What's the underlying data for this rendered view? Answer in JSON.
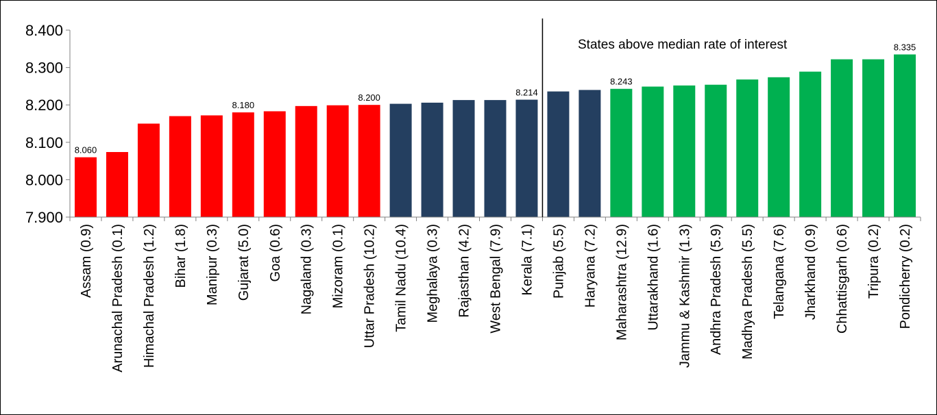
{
  "chart_data": {
    "type": "bar",
    "categories": [
      "Assam (0.9)",
      "Arunachal Pradesh (0.1)",
      "Himachal Pradesh (1.2)",
      "Bihar (1.8)",
      "Manipur (0.3)",
      "Gujarat (5.0)",
      "Goa (0.6)",
      "Nagaland (0.3)",
      "Mizoram (0.1)",
      "Uttar Pradesh (10.2)",
      "Tamil Nadu (10.4)",
      "Meghalaya (0.3)",
      "Rajasthan (4.2)",
      "West Bengal (7.9)",
      "Kerala (7.1)",
      "Punjab (5.5)",
      "Haryana (7.2)",
      "Maharashtra (12.9)",
      "Uttarakhand (1.6)",
      "Jammu & Kashmir (1.3)",
      "Andhra Pradesh (5.9)",
      "Madhya Pradesh (5.5)",
      "Telangana (7.6)",
      "Jharkhand (0.9)",
      "Chhattisgarh (0.6)",
      "Tripura (0.2)",
      "Pondicherry (0.2)"
    ],
    "values": [
      8.06,
      8.074,
      8.15,
      8.17,
      8.172,
      8.18,
      8.183,
      8.197,
      8.199,
      8.2,
      8.203,
      8.206,
      8.213,
      8.213,
      8.214,
      8.236,
      8.24,
      8.243,
      8.249,
      8.252,
      8.254,
      8.268,
      8.274,
      8.289,
      8.322,
      8.322,
      8.335
    ],
    "bar_colors": [
      "#ff0000",
      "#ff0000",
      "#ff0000",
      "#ff0000",
      "#ff0000",
      "#ff0000",
      "#ff0000",
      "#ff0000",
      "#ff0000",
      "#ff0000",
      "#243f60",
      "#243f60",
      "#243f60",
      "#243f60",
      "#243f60",
      "#243f60",
      "#243f60",
      "#00b050",
      "#00b050",
      "#00b050",
      "#00b050",
      "#00b050",
      "#00b050",
      "#00b050",
      "#00b050",
      "#00b050",
      "#00b050"
    ],
    "data_labels": [
      {
        "index": 0,
        "text": "8.060"
      },
      {
        "index": 5,
        "text": "8.180"
      },
      {
        "index": 9,
        "text": "8.200"
      },
      {
        "index": 14,
        "text": "8.214"
      },
      {
        "index": 17,
        "text": "8.243"
      },
      {
        "index": 26,
        "text": "8.335"
      }
    ],
    "y_ticks": [
      "7.900",
      "8.000",
      "8.100",
      "8.200",
      "8.300",
      "8.400"
    ],
    "ylim": [
      7.9,
      8.4
    ],
    "title": "",
    "xlabel": "",
    "ylabel": "",
    "grid": false,
    "annotation": {
      "text": "States above median rate of interest",
      "divider_after_index": 14
    },
    "colors": {
      "below_median": "#ff0000",
      "median_band": "#243f60",
      "above_median": "#00b050",
      "axis": "#808080",
      "divider": "#000000"
    }
  }
}
